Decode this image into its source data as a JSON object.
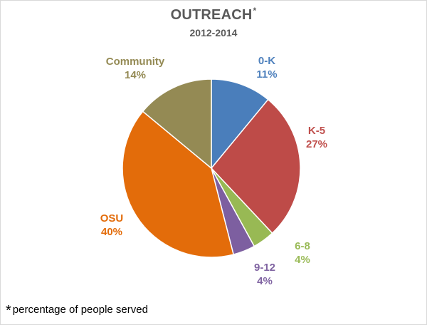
{
  "chart_data": {
    "type": "pie",
    "title": "OUTREACH",
    "title_marker": "*",
    "subtitle": "2012-2014",
    "slices": [
      {
        "label": "0-K",
        "value": 11,
        "display": "11%",
        "color": "#4a7ebb"
      },
      {
        "label": "K-5",
        "value": 27,
        "display": "27%",
        "color": "#be4b48"
      },
      {
        "label": "6-8",
        "value": 4,
        "display": "4%",
        "color": "#98b954"
      },
      {
        "label": "9-12",
        "value": 4,
        "display": "4%",
        "color": "#7d5fa0"
      },
      {
        "label": "OSU",
        "value": 40,
        "display": "40%",
        "color": "#e36c0a"
      },
      {
        "label": "Community",
        "value": 14,
        "display": "14%",
        "color": "#948a54"
      }
    ],
    "start_angle": "12 o'clock",
    "direction": "clockwise",
    "legend": "none"
  },
  "footnote": {
    "marker": "*",
    "text": "percentage of people served"
  },
  "label_colors": {
    "0-K": "#4f81bd",
    "K-5": "#c0504d",
    "6-8": "#9bbb59",
    "9-12": "#8064a2",
    "OSU": "#e36c0a",
    "Community": "#948a54"
  }
}
